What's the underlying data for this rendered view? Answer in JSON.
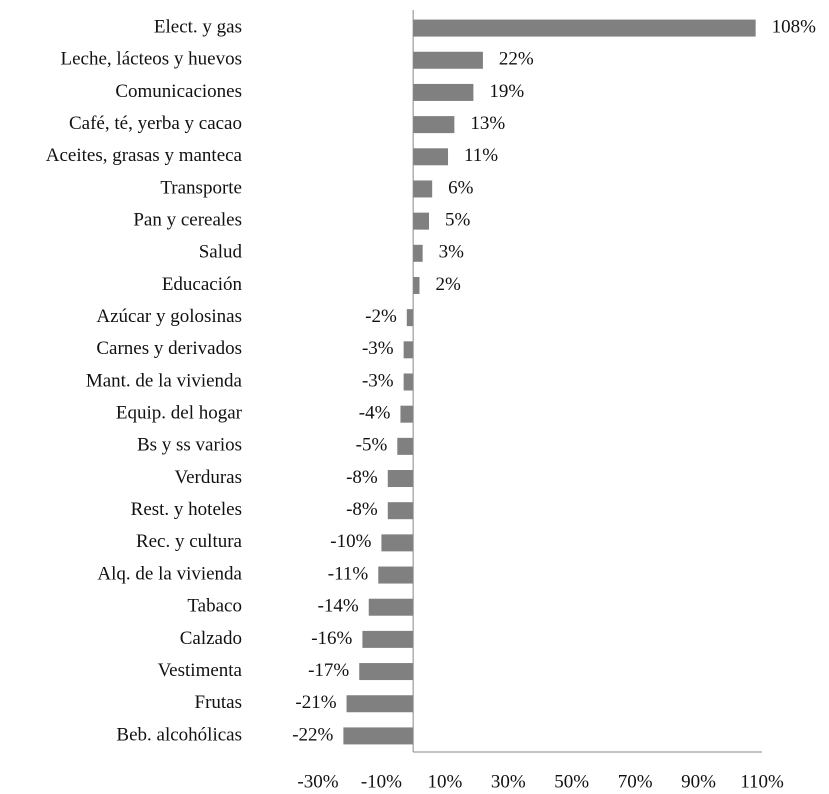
{
  "chart_data": {
    "type": "bar",
    "orientation": "horizontal",
    "color": "#808080",
    "categories": [
      "Elect. y gas",
      "Leche, lácteos y huevos",
      "Comunicaciones",
      "Café, té, yerba y cacao",
      "Aceites, grasas y manteca",
      "Transporte",
      "Pan y cereales",
      "Salud",
      "Educación",
      "Azúcar y  golosinas",
      "Carnes y derivados",
      "Mant. de la vivienda",
      "Equip. del hogar",
      "Bs y ss varios",
      "Verduras",
      "Rest. y hoteles",
      "Rec. y cultura",
      "Alq. de la vivienda",
      "Tabaco",
      "Calzado",
      "Vestimenta",
      "Frutas",
      "Beb. alcohólicas"
    ],
    "values": [
      108,
      22,
      19,
      13,
      11,
      6,
      5,
      3,
      2,
      -2,
      -3,
      -3,
      -4,
      -5,
      -8,
      -8,
      -10,
      -11,
      -14,
      -16,
      -17,
      -21,
      -22
    ],
    "value_labels": [
      "108%",
      "22%",
      "19%",
      "13%",
      "11%",
      "6%",
      "5%",
      "3%",
      "2%",
      "-2%",
      "-3%",
      "-3%",
      "-4%",
      "-5%",
      "-8%",
      "-8%",
      "-10%",
      "-11%",
      "-14%",
      "-16%",
      "-17%",
      "-21%",
      "-22%"
    ],
    "xlim": [
      -30,
      110
    ],
    "xticks": [
      {
        "value": -30,
        "label": "-30%"
      },
      {
        "value": -10,
        "label": "-10%"
      },
      {
        "value": 10,
        "label": "10%"
      },
      {
        "value": 30,
        "label": "30%"
      },
      {
        "value": 50,
        "label": "50%"
      },
      {
        "value": 70,
        "label": "70%"
      },
      {
        "value": 90,
        "label": "90%"
      },
      {
        "value": 110,
        "label": "110%"
      }
    ],
    "grid": false
  }
}
